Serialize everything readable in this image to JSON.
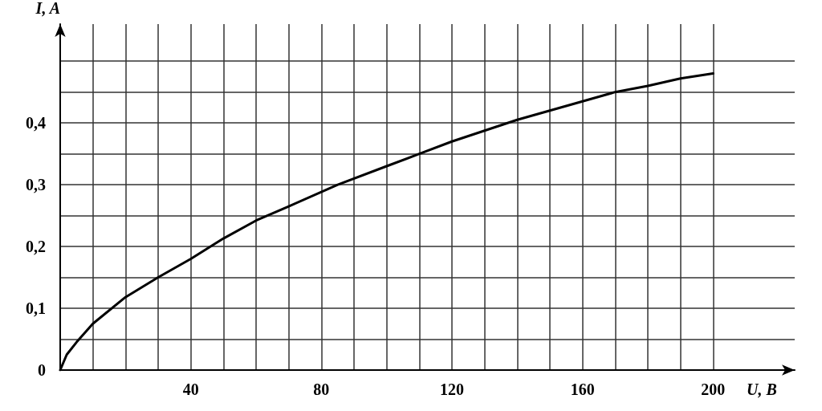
{
  "chart_data": {
    "type": "line",
    "xlabel": "U, B",
    "ylabel": "I, A",
    "x": [
      0,
      2,
      5,
      10,
      20,
      30,
      40,
      50,
      60,
      70,
      85,
      100,
      110,
      120,
      140,
      150,
      160,
      170,
      180,
      190,
      200
    ],
    "series": [
      {
        "color": "#000000",
        "values": [
          0,
          0.025,
          0.045,
          0.075,
          0.118,
          0.15,
          0.18,
          0.213,
          0.242,
          0.265,
          0.3,
          0.33,
          0.35,
          0.37,
          0.405,
          0.42,
          0.435,
          0.45,
          0.46,
          0.472,
          0.48
        ]
      }
    ],
    "xlim": [
      0,
      225
    ],
    "ylim": [
      0,
      0.56
    ],
    "xticks": [
      {
        "value": 0,
        "label": null
      },
      {
        "value": 10,
        "label": null
      },
      {
        "value": 20,
        "label": null
      },
      {
        "value": 30,
        "label": null
      },
      40,
      {
        "value": 50,
        "label": null
      },
      {
        "value": 60,
        "label": null
      },
      {
        "value": 70,
        "label": null
      },
      80,
      {
        "value": 90,
        "label": null
      },
      {
        "value": 100,
        "label": null
      },
      {
        "value": 110,
        "label": null
      },
      120,
      {
        "value": 130,
        "label": null
      },
      {
        "value": 140,
        "label": null
      },
      {
        "value": 150,
        "label": null
      },
      160,
      {
        "value": 170,
        "label": null
      },
      {
        "value": 180,
        "label": null
      },
      {
        "value": 190,
        "label": null
      },
      200
    ],
    "yticks": [
      0,
      {
        "value": 0.05,
        "label": null
      },
      {
        "value": 0.1,
        "label": "0,1"
      },
      {
        "value": 0.15,
        "label": null
      },
      {
        "value": 0.2,
        "label": "0,2"
      },
      {
        "value": 0.25,
        "label": null
      },
      {
        "value": 0.3,
        "label": "0,3"
      },
      {
        "value": 0.35,
        "label": null
      },
      {
        "value": 0.4,
        "label": "0,4"
      },
      {
        "value": 0.45,
        "label": null
      },
      {
        "value": 0.5,
        "label": null
      }
    ],
    "grid": true,
    "marker": "none",
    "line_style": "solid"
  }
}
